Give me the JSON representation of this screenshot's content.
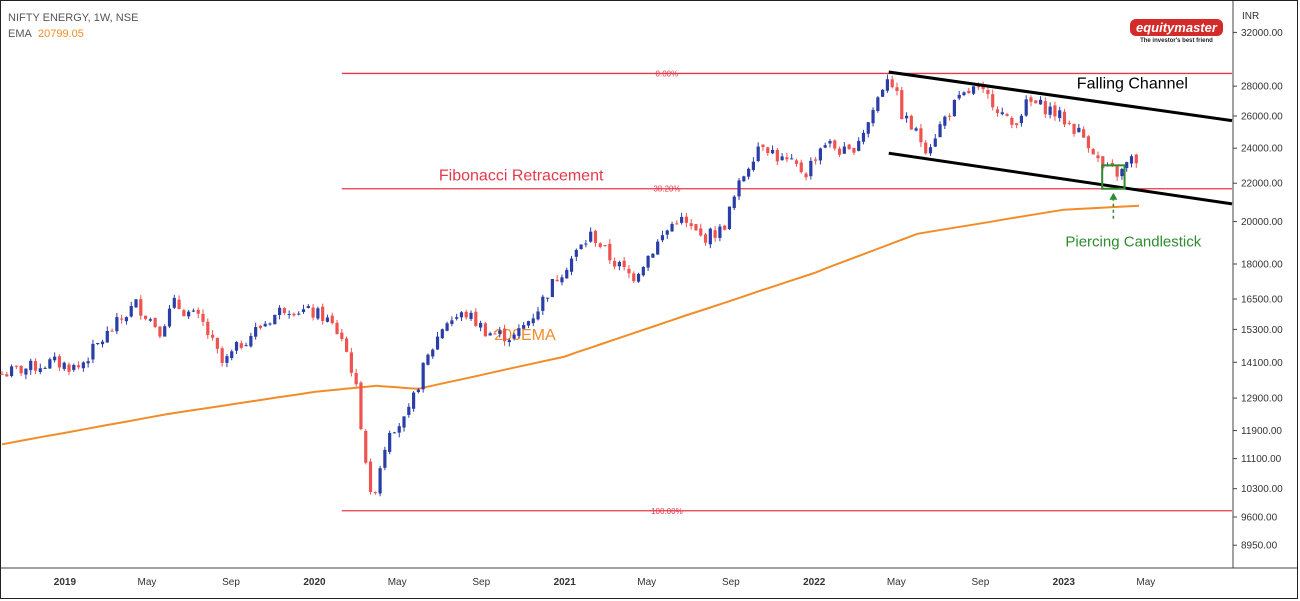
{
  "legend": {
    "line1": "NIFTY ENERGY, 1W, NSE",
    "ema_label": "EMA",
    "ema_value": "20799.05"
  },
  "logo": {
    "brand": "equitymaster",
    "tagline": "The investor's best friend"
  },
  "colors": {
    "up": "#2a3ea8",
    "down": "#ef5350",
    "ema": "#f28c28",
    "fib": "#e53948",
    "channel": "#000000",
    "annotation": "#2e8b2e"
  },
  "chart_data": {
    "type": "candlestick",
    "currency_label": "INR",
    "y_ticks": [
      8950,
      9600,
      10300,
      11100,
      11900,
      12900,
      14100,
      15300,
      16500,
      18000,
      20000,
      22000,
      24000,
      26000,
      28000,
      32000
    ],
    "y_tick_labels": [
      "8950.00",
      "9600.00",
      "10300.00",
      "11100.00",
      "11900.00",
      "12900.00",
      "14100.00",
      "15300.00",
      "16500.00",
      "18000.00",
      "20000.00",
      "22000.00",
      "24000.00",
      "26000.00",
      "28000.00",
      "32000.00"
    ],
    "scale": "log",
    "ylim": [
      8500,
      34000
    ],
    "x_ticks": [
      {
        "label": "2019",
        "date": "2019-01-01",
        "bold": true
      },
      {
        "label": "May",
        "date": "2019-05-01",
        "bold": false
      },
      {
        "label": "Sep",
        "date": "2019-09-01",
        "bold": false
      },
      {
        "label": "2020",
        "date": "2020-01-01",
        "bold": true
      },
      {
        "label": "May",
        "date": "2020-05-01",
        "bold": false
      },
      {
        "label": "Sep",
        "date": "2020-09-01",
        "bold": false
      },
      {
        "label": "2021",
        "date": "2021-01-01",
        "bold": true
      },
      {
        "label": "May",
        "date": "2021-05-01",
        "bold": false
      },
      {
        "label": "Sep",
        "date": "2021-09-01",
        "bold": false
      },
      {
        "label": "2022",
        "date": "2022-01-01",
        "bold": true
      },
      {
        "label": "May",
        "date": "2022-05-01",
        "bold": false
      },
      {
        "label": "Sep",
        "date": "2022-09-01",
        "bold": false
      },
      {
        "label": "2023",
        "date": "2023-01-01",
        "bold": true
      },
      {
        "label": "May",
        "date": "2023-05-01",
        "bold": false
      }
    ],
    "xlim": [
      "2018-10-01",
      "2023-09-04"
    ],
    "price_anchors": [
      [
        "2018-10-01",
        13700
      ],
      [
        "2018-12-15",
        14100
      ],
      [
        "2019-01-20",
        13900
      ],
      [
        "2019-04-15",
        16300
      ],
      [
        "2019-05-20",
        15300
      ],
      [
        "2019-06-10",
        16300
      ],
      [
        "2019-07-20",
        15600
      ],
      [
        "2019-08-20",
        14000
      ],
      [
        "2019-09-20",
        14900
      ],
      [
        "2019-11-20",
        16200
      ],
      [
        "2020-01-15",
        15800
      ],
      [
        "2020-02-10",
        15000
      ],
      [
        "2020-02-28",
        13600
      ],
      [
        "2020-03-24",
        9900
      ],
      [
        "2020-04-20",
        12000
      ],
      [
        "2020-05-15",
        12200
      ],
      [
        "2020-06-10",
        14000
      ],
      [
        "2020-07-10",
        15600
      ],
      [
        "2020-08-10",
        15900
      ],
      [
        "2020-09-10",
        15200
      ],
      [
        "2020-10-20",
        15000
      ],
      [
        "2020-11-20",
        16000
      ],
      [
        "2020-12-20",
        17400
      ],
      [
        "2021-02-10",
        19400
      ],
      [
        "2021-03-10",
        18200
      ],
      [
        "2021-04-10",
        17400
      ],
      [
        "2021-06-15",
        20200
      ],
      [
        "2021-07-20",
        19200
      ],
      [
        "2021-08-20",
        19600
      ],
      [
        "2021-09-20",
        22500
      ],
      [
        "2021-10-15",
        24500
      ],
      [
        "2021-11-10",
        23400
      ],
      [
        "2021-12-20",
        22600
      ],
      [
        "2022-01-15",
        24400
      ],
      [
        "2022-02-20",
        23600
      ],
      [
        "2022-03-20",
        25500
      ],
      [
        "2022-04-20",
        29000
      ],
      [
        "2022-05-10",
        26000
      ],
      [
        "2022-06-15",
        24000
      ],
      [
        "2022-07-20",
        26500
      ],
      [
        "2022-08-20",
        27800
      ],
      [
        "2022-09-20",
        27000
      ],
      [
        "2022-10-15",
        25300
      ],
      [
        "2022-11-10",
        26900
      ],
      [
        "2022-12-10",
        26500
      ],
      [
        "2023-01-20",
        25100
      ],
      [
        "2023-02-10",
        24200
      ],
      [
        "2023-02-25",
        22800
      ],
      [
        "2023-03-10",
        22700
      ],
      [
        "2023-03-25",
        22500
      ],
      [
        "2023-04-07",
        23300
      ],
      [
        "2023-04-21",
        23300
      ]
    ],
    "ema200": {
      "name": "200EMA",
      "points": [
        [
          "2018-10-01",
          11500
        ],
        [
          "2019-06-01",
          12400
        ],
        [
          "2020-01-01",
          13100
        ],
        [
          "2020-04-01",
          13300
        ],
        [
          "2020-06-01",
          13200
        ],
        [
          "2021-01-01",
          14300
        ],
        [
          "2021-06-01",
          15600
        ],
        [
          "2022-01-01",
          17600
        ],
        [
          "2022-06-01",
          19400
        ],
        [
          "2023-01-01",
          20600
        ],
        [
          "2023-04-21",
          20800
        ]
      ]
    },
    "fibonacci": {
      "label": "Fibonacci Retracement",
      "x_start": "2020-02-10",
      "levels": [
        {
          "label": "0.00%",
          "value": 28900
        },
        {
          "label": "38.20%",
          "value": 21700
        },
        {
          "label": "100.00%",
          "value": 9750
        }
      ]
    },
    "channel": {
      "label": "Falling Channel",
      "lines": [
        [
          [
            "2022-04-20",
            29000
          ],
          [
            "2023-09-04",
            25700
          ]
        ],
        [
          [
            "2022-04-20",
            23700
          ],
          [
            "2023-09-04",
            20900
          ]
        ]
      ]
    },
    "pattern": {
      "label": "Piercing Candlestick",
      "start": "2023-03-04",
      "end": "2023-03-25",
      "low": 21700,
      "high": 23000
    }
  }
}
